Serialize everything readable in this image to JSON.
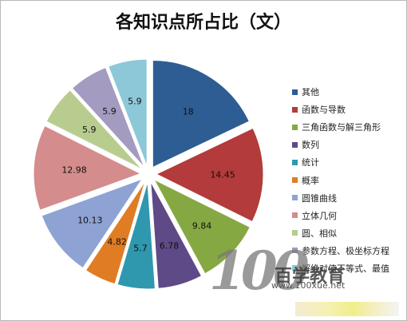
{
  "chart_data": {
    "type": "pie",
    "title": "各知识点所占比（文）",
    "categories": [
      "其他",
      "函数与导数",
      "三角函数与解三角形",
      "数列",
      "统计",
      "概率",
      "圆锥曲线",
      "立体几何",
      "圆、相似",
      "参数方程、极坐标方程",
      "解绝对值不等式、最值"
    ],
    "values": [
      18,
      14.45,
      9.84,
      6.78,
      5.7,
      4.82,
      10.13,
      12.98,
      5.9,
      5.9,
      5.9
    ],
    "data_labels": [
      "18",
      "14.45",
      "9.84",
      "6.78",
      "5.7",
      "4.82",
      "10.13",
      "12.98",
      "5.9",
      "5.9",
      "5.9"
    ],
    "colors": [
      "#2e5d94",
      "#b33b3b",
      "#86a843",
      "#5e4a86",
      "#2f98ae",
      "#e07c24",
      "#8ea3d3",
      "#d48d8c",
      "#b7cc8e",
      "#a49bc0",
      "#8cc8d8"
    ],
    "exploded": true,
    "legend_position": "right"
  },
  "watermark": {
    "logo_text": "100",
    "brand": "百学教育",
    "url": "www.100xue.net"
  }
}
